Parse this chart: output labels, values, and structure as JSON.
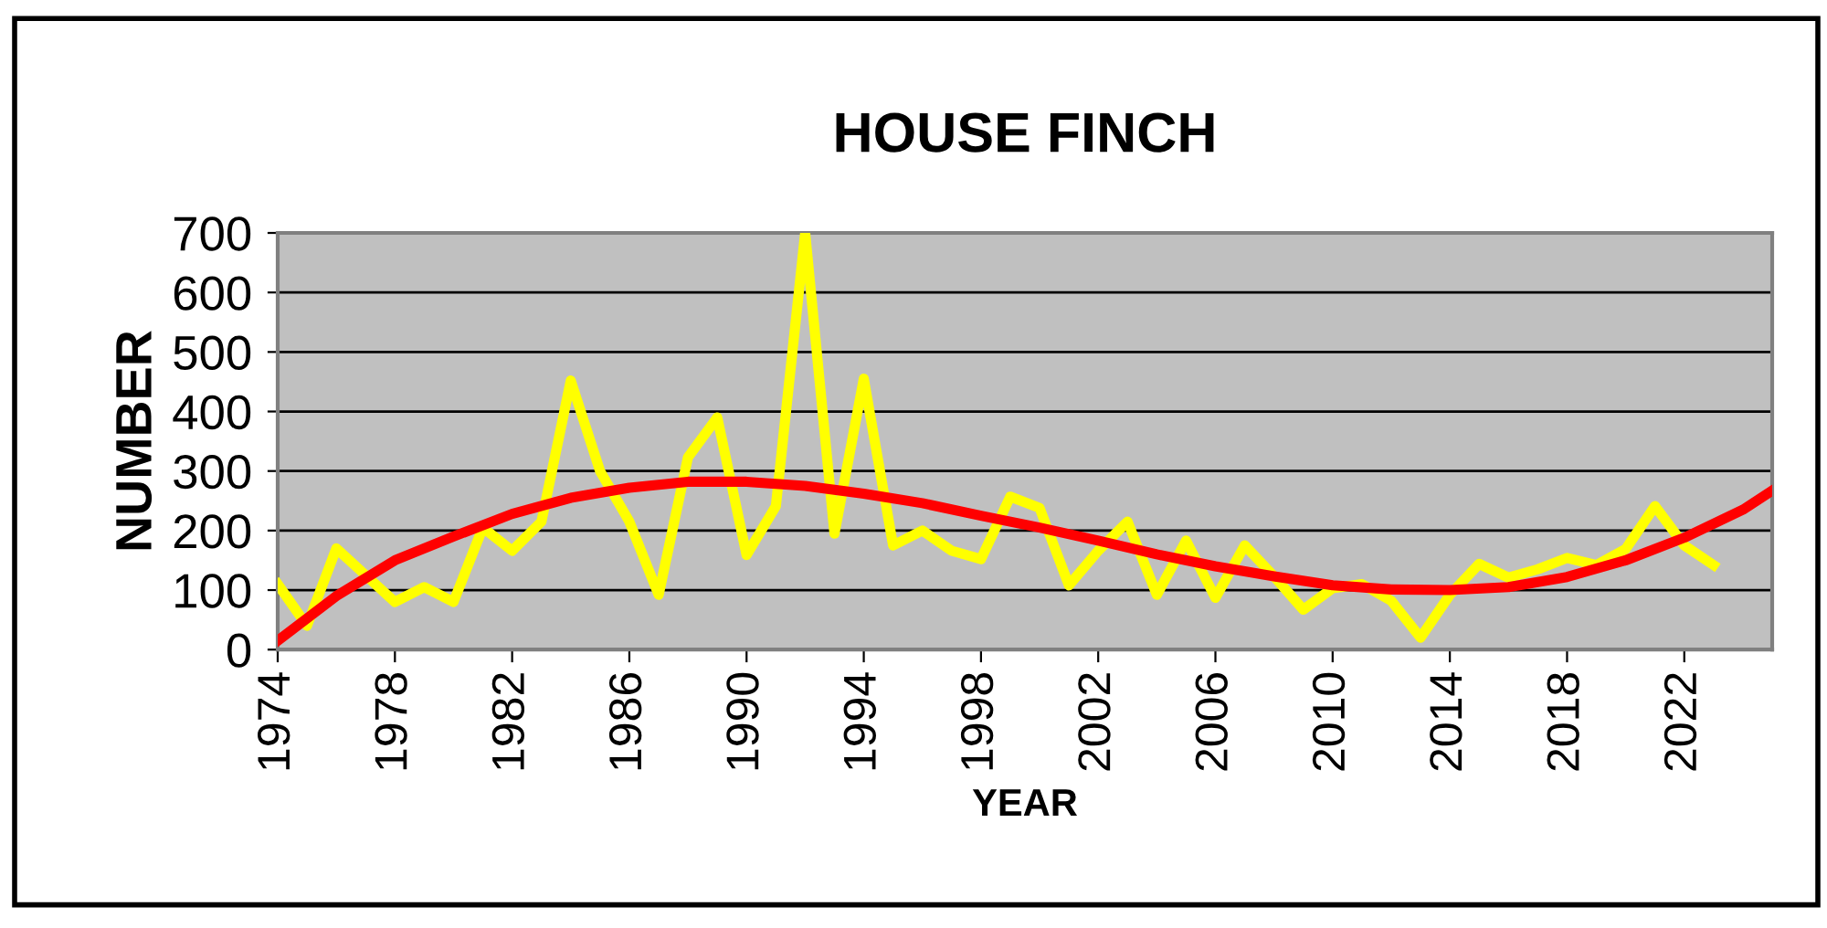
{
  "chart_data": {
    "type": "line",
    "title": "HOUSE FINCH",
    "xlabel": "YEAR",
    "ylabel": "NUMBER",
    "x": [
      1974,
      1975,
      1976,
      1977,
      1978,
      1979,
      1980,
      1981,
      1982,
      1983,
      1984,
      1985,
      1986,
      1987,
      1988,
      1989,
      1990,
      1991,
      1992,
      1993,
      1994,
      1995,
      1996,
      1997,
      1998,
      1999,
      2000,
      2001,
      2002,
      2003,
      2004,
      2005,
      2006,
      2007,
      2008,
      2009,
      2010,
      2011,
      2012,
      2013,
      2014,
      2015,
      2016,
      2017,
      2018,
      2019,
      2020,
      2021,
      2022,
      2023
    ],
    "series": [
      {
        "color": "#ffff00",
        "values": [
          110,
          40,
          170,
          125,
          80,
          105,
          80,
          205,
          166,
          215,
          452,
          300,
          215,
          92,
          323,
          390,
          159,
          241,
          700,
          195,
          455,
          175,
          200,
          166,
          152,
          257,
          238,
          108,
          166,
          215,
          92,
          183,
          87,
          175,
          123,
          67,
          103,
          110,
          82,
          20,
          92,
          144,
          121,
          135,
          154,
          142,
          169,
          241,
          175,
          142
        ]
      },
      {
        "type": "line",
        "color": "#ff0000",
        "x": [
          1974,
          1976,
          1978,
          1980,
          1982,
          1984,
          1986,
          1988,
          1990,
          1992,
          1994,
          1996,
          1998,
          2000,
          2002,
          2004,
          2006,
          2008,
          2010,
          2012,
          2014,
          2016,
          2018,
          2020,
          2022,
          2024,
          2025
        ],
        "values": [
          15,
          90,
          150,
          190,
          228,
          255,
          272,
          282,
          282,
          275,
          262,
          246,
          225,
          205,
          183,
          160,
          140,
          123,
          108,
          101,
          100,
          105,
          122,
          150,
          188,
          235,
          267
        ]
      }
    ],
    "xlim": [
      1974,
      2025
    ],
    "xticks": [
      1974,
      1978,
      1982,
      1986,
      1990,
      1994,
      1998,
      2002,
      2006,
      2010,
      2014,
      2018,
      2022
    ],
    "ylim": [
      0,
      700
    ],
    "yticks": [
      0,
      100,
      200,
      300,
      400,
      500,
      600,
      700
    ],
    "grid": "y",
    "marker": "none",
    "line_style": "solid"
  }
}
